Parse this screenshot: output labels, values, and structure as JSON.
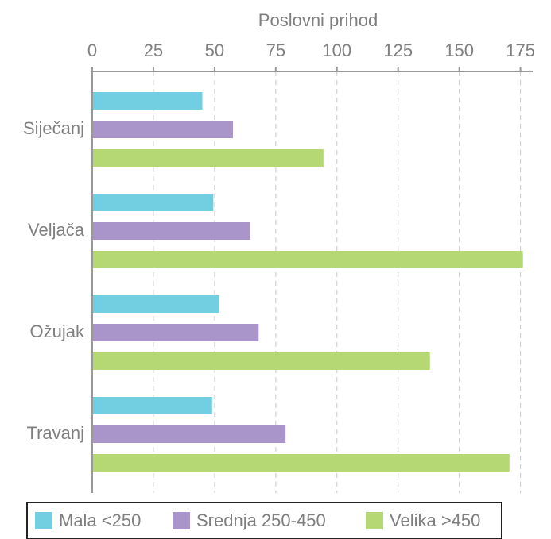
{
  "chart_data": {
    "type": "hbar",
    "title": "Poslovni prihod",
    "categories": [
      "Siječanj",
      "Veljača",
      "Ožujak",
      "Travanj"
    ],
    "series": [
      {
        "name": "Mala <250",
        "color": "#72cfe2",
        "values": [
          45,
          49.5,
          52,
          49
        ]
      },
      {
        "name": "Srednja 250-450",
        "color": "#a995c9",
        "values": [
          57.5,
          64.5,
          68,
          79
        ]
      },
      {
        "name": "Velika >450",
        "color": "#b5d774",
        "values": [
          94.5,
          176,
          138,
          170.5
        ]
      }
    ],
    "xlim": [
      0,
      180
    ],
    "xticks": [
      0,
      25,
      50,
      75,
      100,
      125,
      150,
      175
    ],
    "grid": true,
    "legend": "bottom"
  }
}
